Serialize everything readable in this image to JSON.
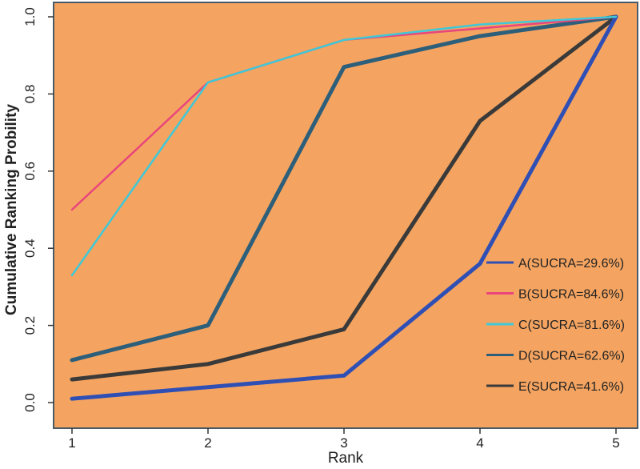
{
  "chart_data": {
    "type": "line",
    "title": "",
    "xlabel": "Rank",
    "ylabel": "Cumulative Ranking Probility",
    "x": [
      1,
      2,
      3,
      4,
      5
    ],
    "xlim": [
      1,
      5
    ],
    "ylim": [
      0,
      1
    ],
    "x_ticks": [
      "1",
      "2",
      "3",
      "4",
      "5"
    ],
    "y_ticks": [
      "0.0",
      "0.2",
      "0.4",
      "0.6",
      "0.8",
      "1.0"
    ],
    "grid": false,
    "legend_position": "bottom-right",
    "background_color": "#F4A460",
    "series": [
      {
        "name": "A(SUCRA=29.6%)",
        "color": "#2F4FB5",
        "values": [
          0.01,
          0.04,
          0.07,
          0.36,
          1.0
        ]
      },
      {
        "name": "B(SUCRA=84.6%)",
        "color": "#E8467C",
        "values": [
          0.5,
          0.83,
          0.94,
          0.97,
          1.0
        ]
      },
      {
        "name": "C(SUCRA=81.6%)",
        "color": "#3EC8D8",
        "values": [
          0.33,
          0.83,
          0.94,
          0.98,
          1.0
        ]
      },
      {
        "name": "D(SUCRA=62.6%)",
        "color": "#2E5F7A",
        "values": [
          0.11,
          0.2,
          0.87,
          0.95,
          1.0
        ]
      },
      {
        "name": "E(SUCRA=41.6%)",
        "color": "#3A3A3A",
        "values": [
          0.06,
          0.1,
          0.19,
          0.73,
          1.0
        ]
      }
    ]
  }
}
